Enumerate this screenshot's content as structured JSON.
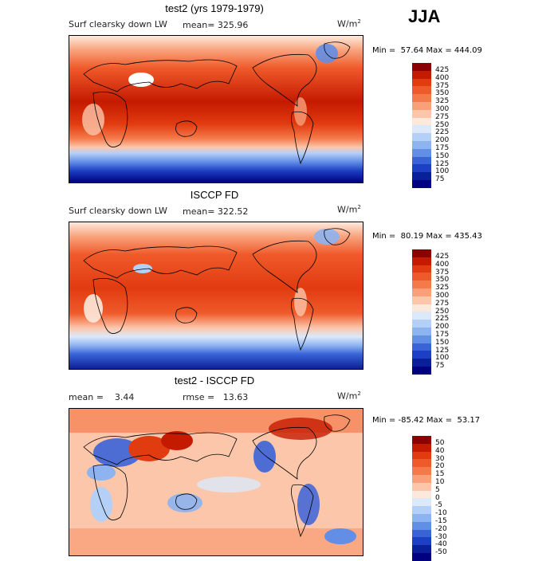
{
  "season": "JJA",
  "panels": [
    {
      "title": "test2 (yrs 1979-1979)",
      "variable": "Surf clearsky down LW",
      "stat": "mean= 325.96",
      "units": "W/m",
      "units_sup": "2",
      "minmax": "Min =  57.64 Max = 444.09",
      "levels": [
        "425",
        "400",
        "375",
        "350",
        "325",
        "300",
        "275",
        "250",
        "225",
        "200",
        "175",
        "150",
        "125",
        "100",
        "75"
      ],
      "colors": [
        "#8b0000",
        "#c41a00",
        "#e13b10",
        "#ef5a2a",
        "#f57a4a",
        "#f9a07a",
        "#fcc6ab",
        "#fde9db",
        "#dbe9fb",
        "#b5d0f7",
        "#8db3f0",
        "#628ee6",
        "#3a63d8",
        "#1c3fc4",
        "#0a1f9a",
        "#000080"
      ],
      "kind": "abs"
    },
    {
      "title": "ISCCP FD",
      "variable": "Surf clearsky down LW",
      "stat": "mean= 322.52",
      "units": "W/m",
      "units_sup": "2",
      "minmax": "Min =  80.19 Max = 435.43",
      "levels": [
        "425",
        "400",
        "375",
        "350",
        "325",
        "300",
        "275",
        "250",
        "225",
        "200",
        "175",
        "150",
        "125",
        "100",
        "75"
      ],
      "colors": [
        "#8b0000",
        "#c41a00",
        "#e13b10",
        "#ef5a2a",
        "#f57a4a",
        "#f9a07a",
        "#fcc6ab",
        "#fde9db",
        "#dbe9fb",
        "#b5d0f7",
        "#8db3f0",
        "#628ee6",
        "#3a63d8",
        "#1c3fc4",
        "#0a1f9a",
        "#000080"
      ],
      "kind": "abs"
    },
    {
      "title": "test2 - ISCCP FD",
      "stat_mean": "mean =    3.44",
      "stat_rmse": "rmse =   13.63",
      "units": "W/m",
      "units_sup": "2",
      "minmax": "Min = -85.42 Max =  53.17",
      "levels": [
        "50",
        "40",
        "30",
        "20",
        "15",
        "10",
        "5",
        "0",
        "-5",
        "-10",
        "-15",
        "-20",
        "-30",
        "-40",
        "-50"
      ],
      "colors": [
        "#8b0000",
        "#c41a00",
        "#e13b10",
        "#ef5a2a",
        "#f57a4a",
        "#f9a07a",
        "#fcc6ab",
        "#fde9db",
        "#dbe9fb",
        "#b5d0f7",
        "#8db3f0",
        "#628ee6",
        "#3a63d8",
        "#1c3fc4",
        "#0a1f9a",
        "#000080"
      ],
      "kind": "diff"
    }
  ]
}
